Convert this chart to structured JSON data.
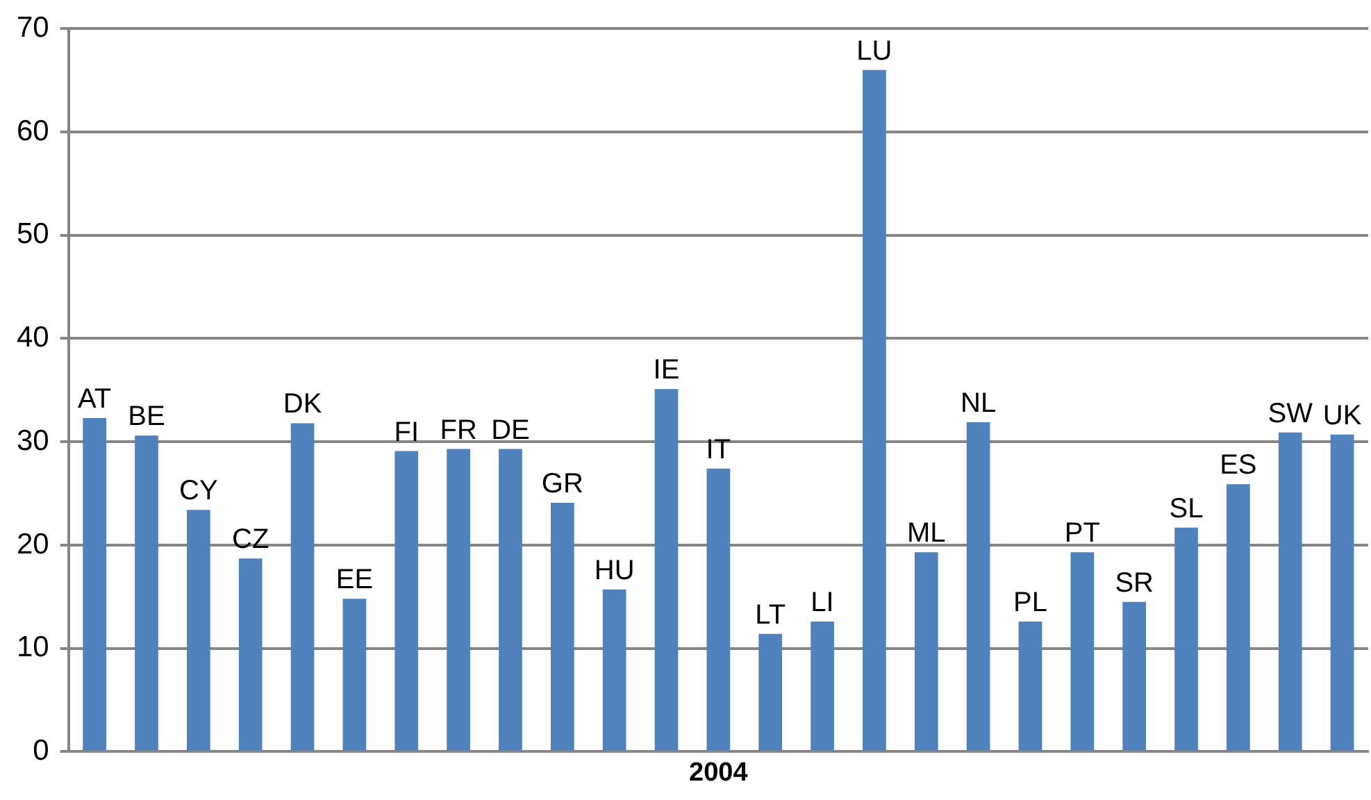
{
  "chart_data": {
    "type": "bar",
    "xlabel": "2004",
    "categories": [
      "AT",
      "BE",
      "CY",
      "CZ",
      "DK",
      "EE",
      "FI",
      "FR",
      "DE",
      "GR",
      "HU",
      "IE",
      "IT",
      "LT",
      "LI",
      "LU",
      "ML",
      "NL",
      "PL",
      "PT",
      "SR",
      "SL",
      "ES",
      "SW",
      "UK"
    ],
    "values": [
      32.3,
      30.6,
      23.4,
      18.7,
      31.8,
      14.8,
      29.1,
      29.3,
      29.3,
      24.1,
      15.7,
      35.1,
      27.4,
      11.4,
      12.6,
      66.0,
      19.3,
      31.9,
      12.6,
      19.3,
      14.5,
      21.7,
      25.9,
      30.9,
      30.7
    ],
    "color": "#4f81bd",
    "ylim": [
      0,
      70
    ],
    "yticks": [
      0,
      10,
      20,
      30,
      40,
      50,
      60,
      70
    ],
    "grid": "y",
    "legend": false,
    "tick_labels": "y"
  }
}
